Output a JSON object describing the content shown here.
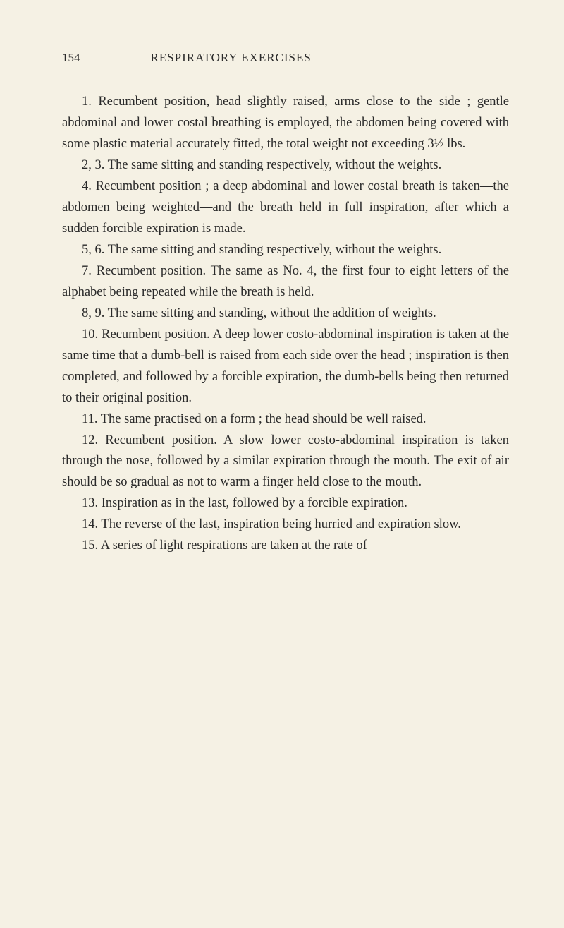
{
  "header": {
    "page_number": "154",
    "chapter_title": "RESPIRATORY EXERCISES"
  },
  "paragraphs": {
    "p1": "1. Recumbent position, head slightly raised, arms close to the side ; gentle abdominal and lower costal breathing is employed, the abdomen being covered with some plastic material accurately fitted, the total weight not exceeding 3½ lbs.",
    "p2": "2, 3. The same sitting and standing respectively, without the weights.",
    "p3": "4. Recumbent position ; a deep abdominal and lower costal breath is taken—the abdomen being weighted—and the breath held in full inspiration, after which a sudden forcible expiration is made.",
    "p4": "5, 6. The same sitting and standing respectively, without the weights.",
    "p5": "7. Recumbent position. The same as No. 4, the first four to eight letters of the alphabet being repeated while the breath is held.",
    "p6": "8, 9. The same sitting and standing, without the addition of weights.",
    "p7": "10. Recumbent position. A deep lower costo-abdominal inspiration is taken at the same time that a dumb-bell is raised from each side over the head ; inspiration is then completed, and followed by a forcible expiration, the dumb-bells being then returned to their original position.",
    "p8": "11. The same practised on a form ; the head should be well raised.",
    "p9": "12. Recumbent position. A slow lower costo-abdominal inspiration is taken through the nose, followed by a similar expiration through the mouth. The exit of air should be so gradual as not to warm a finger held close to the mouth.",
    "p10": "13. Inspiration as in the last, followed by a forcible expiration.",
    "p11": "14. The reverse of the last, inspiration being hurried and expiration slow.",
    "p12": "15. A series of light respirations are taken at the rate of"
  }
}
